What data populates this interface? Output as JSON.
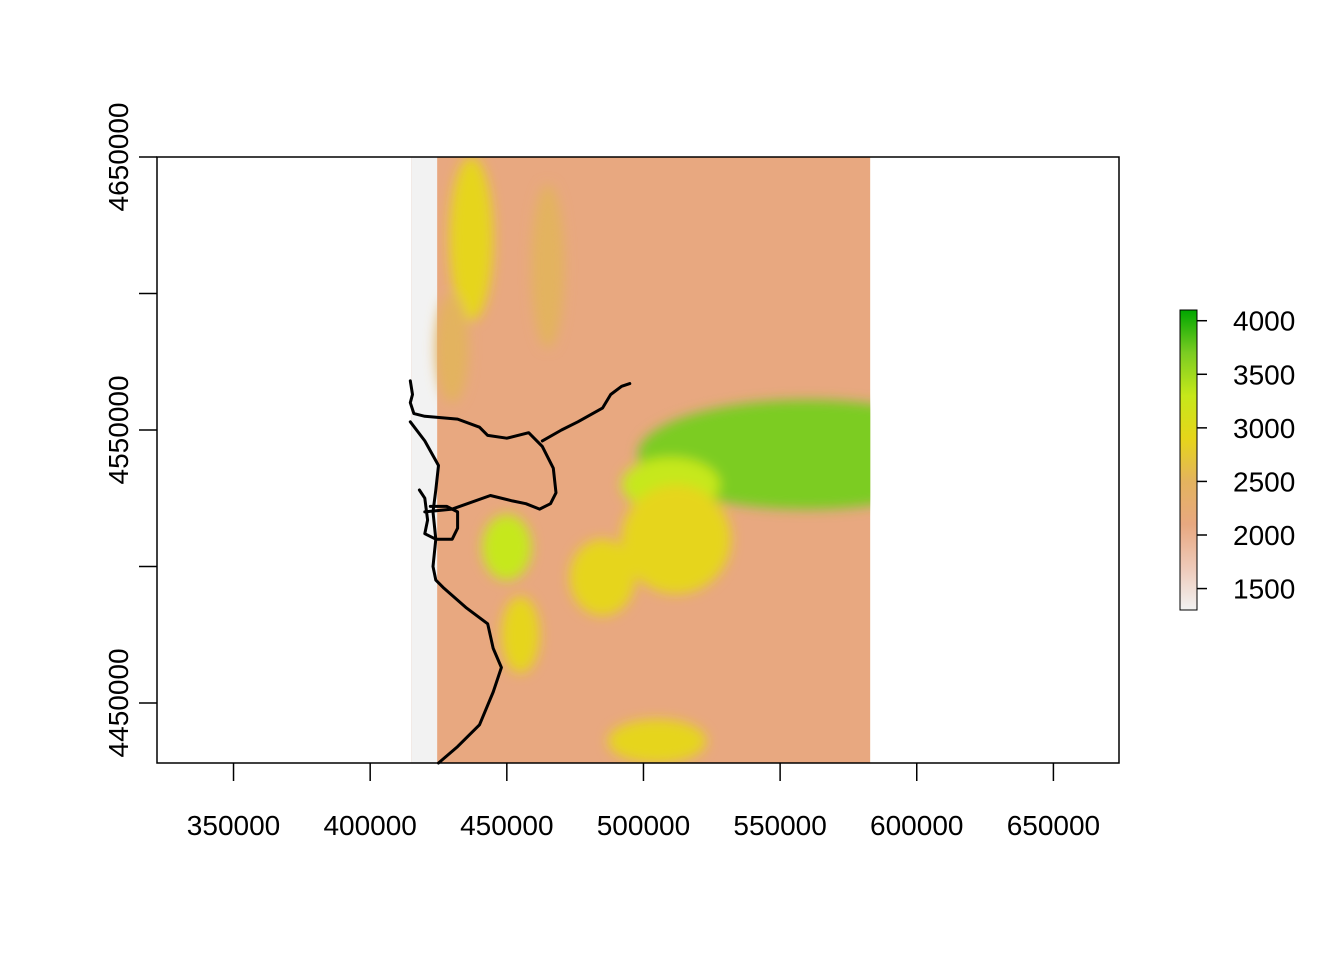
{
  "chart_data": {
    "type": "heatmap",
    "title": "",
    "xlabel": "",
    "ylabel": "",
    "xlim": [
      322000,
      674000
    ],
    "ylim": [
      4428000,
      4650000
    ],
    "x_ticks": [
      350000,
      400000,
      450000,
      500000,
      550000,
      600000,
      650000
    ],
    "y_ticks": [
      4450000,
      4500000,
      4550000,
      4600000,
      4650000
    ],
    "y_tick_labels_shown": [
      "4450000",
      "4550000",
      "4650000"
    ],
    "raster_extent": {
      "xmin": 415000,
      "xmax": 583000,
      "ymin": 4428000,
      "ymax": 4650000
    },
    "legend": {
      "placement": "right",
      "min": 1300,
      "max": 4100,
      "ticks": [
        1500,
        2000,
        2500,
        3000,
        3500,
        4000
      ],
      "colors": [
        "#F2F2F2",
        "#EEC9B8",
        "#E8A880",
        "#E3B35E",
        "#E6D51A",
        "#C6E81A",
        "#7BCC22",
        "#00A600"
      ]
    },
    "high_elevation_regions": [
      {
        "cx": 560000,
        "cy": 4541000,
        "rx": 62000,
        "ry": 20000,
        "value": 3700
      },
      {
        "cx": 510000,
        "cy": 4530000,
        "rx": 18000,
        "ry": 10000,
        "value": 3200
      },
      {
        "cx": 512000,
        "cy": 4510000,
        "rx": 20000,
        "ry": 20000,
        "value": 3000
      },
      {
        "cx": 450000,
        "cy": 4507000,
        "rx": 9000,
        "ry": 12000,
        "value": 3100
      },
      {
        "cx": 455000,
        "cy": 4475000,
        "rx": 7000,
        "ry": 14000,
        "value": 2900
      },
      {
        "cx": 485000,
        "cy": 4496000,
        "rx": 12000,
        "ry": 14000,
        "value": 2900
      },
      {
        "cx": 505000,
        "cy": 4436000,
        "rx": 18000,
        "ry": 8000,
        "value": 2900
      },
      {
        "cx": 437000,
        "cy": 4620000,
        "rx": 8000,
        "ry": 30000,
        "value": 2700
      },
      {
        "cx": 465000,
        "cy": 4610000,
        "rx": 6000,
        "ry": 30000,
        "value": 2600
      },
      {
        "cx": 430000,
        "cy": 4580000,
        "rx": 6000,
        "ry": 20000,
        "value": 2500
      }
    ],
    "lines": [
      [
        [
          414700,
          4568000
        ],
        [
          415500,
          4563000
        ],
        [
          414700,
          4560000
        ],
        [
          416000,
          4556000
        ],
        [
          420000,
          4555000
        ],
        [
          432000,
          4554000
        ],
        [
          440000,
          4551000
        ],
        [
          443000,
          4548000
        ],
        [
          450000,
          4547000
        ],
        [
          458000,
          4549000
        ],
        [
          463000,
          4544000
        ],
        [
          467000,
          4536000
        ],
        [
          468000,
          4527000
        ],
        [
          466000,
          4523000
        ],
        [
          462000,
          4521000
        ],
        [
          457000,
          4523000
        ],
        [
          452000,
          4524000
        ],
        [
          444000,
          4526000
        ],
        [
          430000,
          4521000
        ],
        [
          420000,
          4520000
        ]
      ],
      [
        [
          414700,
          4553000
        ],
        [
          420000,
          4546000
        ],
        [
          425000,
          4537000
        ],
        [
          424000,
          4528000
        ],
        [
          423000,
          4520000
        ],
        [
          424000,
          4510000
        ],
        [
          423000,
          4500000
        ],
        [
          424000,
          4495000
        ],
        [
          427000,
          4492000
        ],
        [
          435000,
          4485000
        ],
        [
          443000,
          4479000
        ],
        [
          445000,
          4470000
        ],
        [
          448000,
          4463000
        ],
        [
          445000,
          4454000
        ],
        [
          440000,
          4442000
        ],
        [
          432000,
          4434000
        ],
        [
          425000,
          4428000
        ]
      ],
      [
        [
          418000,
          4528000
        ],
        [
          420000,
          4525000
        ],
        [
          421000,
          4517000
        ],
        [
          420000,
          4512000
        ],
        [
          424000,
          4510000
        ],
        [
          430000,
          4510000
        ],
        [
          432000,
          4514000
        ],
        [
          432000,
          4520000
        ],
        [
          428000,
          4522000
        ],
        [
          422000,
          4522000
        ]
      ],
      [
        [
          463000,
          4546000
        ],
        [
          470000,
          4550000
        ],
        [
          476000,
          4553000
        ],
        [
          485000,
          4558000
        ],
        [
          488000,
          4563000
        ],
        [
          492000,
          4566000
        ],
        [
          495000,
          4567000
        ]
      ]
    ]
  }
}
